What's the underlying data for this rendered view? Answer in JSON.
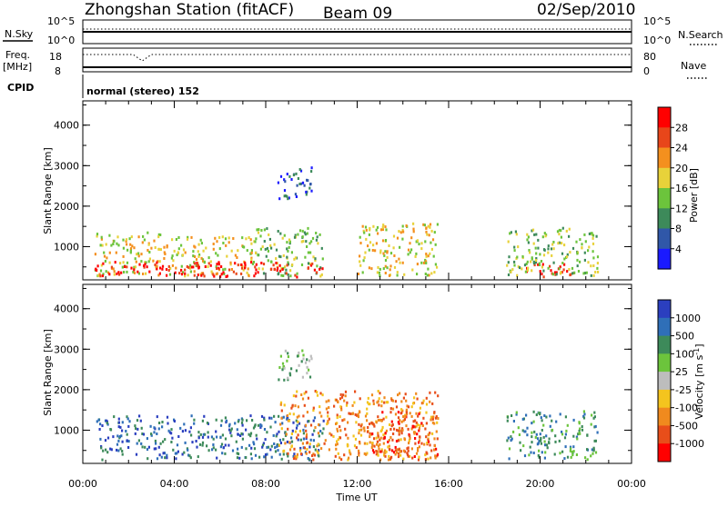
{
  "header": {
    "station": "Zhongshan Station (fitACF)",
    "beam": "Beam 09",
    "date": "02/Sep/2010"
  },
  "strips": {
    "nsky_label": "N.Sky",
    "nsearch_label": "N.Search",
    "freq_label": "Freq.",
    "freq_unit": "[MHz]",
    "nave_label": "Nave",
    "cpid_label": "CPID",
    "cpid_text": "normal (stereo) 152",
    "left_ticks_top": "10^5",
    "left_ticks_bottom": "10^0",
    "right_ticks_top": "10^5",
    "right_ticks_bottom": "10^0",
    "freq_ticks": [
      "18",
      "8"
    ],
    "nave_ticks": [
      "80",
      "0"
    ]
  },
  "chart_data": [
    {
      "type": "heatmap",
      "name": "power",
      "ylabel": "Slant Range [km]",
      "xlabel": "Time UT",
      "ylim": [
        180,
        4600
      ],
      "yticks": [
        "1000",
        "2000",
        "3000",
        "4000"
      ],
      "xticks": [
        "00:00",
        "04:00",
        "08:00",
        "12:00",
        "16:00",
        "20:00",
        "00:00"
      ],
      "colorbar": {
        "label": "Power [dB]",
        "ticks": [
          "4",
          "8",
          "12",
          "16",
          "20",
          "24",
          "28"
        ],
        "colors": [
          "#1a1aff",
          "#3057a8",
          "#3d8a5a",
          "#6cc43c",
          "#e8d23a",
          "#f4901e",
          "#e8461a",
          "#ff0000"
        ]
      },
      "regions": [
        {
          "x": [
            0.5,
            3.5
          ],
          "y": [
            300,
            1400
          ],
          "level": 4
        },
        {
          "x": [
            3.5,
            7.5
          ],
          "y": [
            300,
            1300
          ],
          "level": 4
        },
        {
          "x": [
            7.5,
            10.5
          ],
          "y": [
            300,
            1500
          ],
          "level": 3
        },
        {
          "x": [
            12.0,
            15.5
          ],
          "y": [
            300,
            1600
          ],
          "level": 4
        },
        {
          "x": [
            0.5,
            10.5
          ],
          "y": [
            280,
            650
          ],
          "level": 7
        },
        {
          "x": [
            19.2,
            21.5
          ],
          "y": [
            280,
            600
          ],
          "level": 7
        },
        {
          "x": [
            8.5,
            10.0
          ],
          "y": [
            2200,
            3000
          ],
          "level": 1
        },
        {
          "x": [
            18.5,
            22.5
          ],
          "y": [
            300,
            1500
          ],
          "level": 3
        }
      ]
    },
    {
      "type": "heatmap",
      "name": "velocity",
      "ylabel": "Slant Range [km]",
      "xlabel": "Time UT",
      "ylim": [
        180,
        4600
      ],
      "yticks": [
        "1000",
        "2000",
        "3000",
        "4000"
      ],
      "xticks": [
        "00:00",
        "04:00",
        "08:00",
        "12:00",
        "16:00",
        "20:00",
        "00:00"
      ],
      "colorbar": {
        "label": "Velocity [m s",
        "label_sup": "-1",
        "label_end": "]",
        "ticks": [
          "1000",
          "500",
          "100",
          "25",
          "-25",
          "-100",
          "-500",
          "-1000"
        ],
        "colors": [
          "#2b3fbf",
          "#2f6fb8",
          "#3d8a5a",
          "#6cc43c",
          "#bdbdbd",
          "#f4c41e",
          "#f08a1e",
          "#e84e1a",
          "#ff0000"
        ]
      },
      "regions": [
        {
          "x": [
            0.5,
            10.5
          ],
          "y": [
            300,
            1400
          ],
          "level": 1
        },
        {
          "x": [
            8.5,
            15.5
          ],
          "y": [
            300,
            2000
          ],
          "level": 6
        },
        {
          "x": [
            8.5,
            10.0
          ],
          "y": [
            2200,
            3000
          ],
          "level": 3
        },
        {
          "x": [
            18.5,
            22.5
          ],
          "y": [
            300,
            1500
          ],
          "level": 2
        },
        {
          "x": [
            12.0,
            15.5
          ],
          "y": [
            300,
            1500
          ],
          "level": 7
        }
      ]
    }
  ]
}
